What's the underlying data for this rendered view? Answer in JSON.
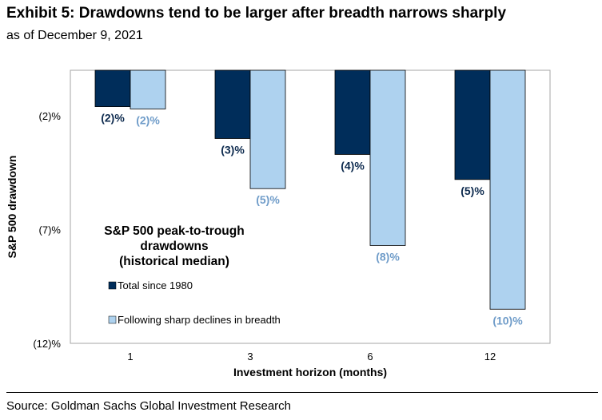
{
  "page": {
    "title": "Exhibit 5: Drawdowns tend to be larger after breadth narrows sharply",
    "subtitle": "as of December 9, 2021",
    "source": "Source: Goldman Sachs Global Investment Research"
  },
  "chart_data": {
    "type": "bar",
    "xlabel": "Investment horizon (months)",
    "ylabel": "S&P 500 drawdown",
    "categories": [
      "1",
      "3",
      "6",
      "12"
    ],
    "ylim": [
      -12,
      0
    ],
    "y_ticks": [
      {
        "value": -2,
        "label": "(2)%"
      },
      {
        "value": -7,
        "label": "(7)%"
      },
      {
        "value": -12,
        "label": "(12)%"
      }
    ],
    "grid": false,
    "legend": {
      "placement": "bottom-left",
      "title_lines": [
        "S&P 500 peak-to-trough",
        "drawdowns",
        "(historical median)"
      ]
    },
    "series": [
      {
        "name": "Total since 1980",
        "color": "#002d5a",
        "label_color": "#0d2a4e",
        "values": [
          -1.6,
          -3.0,
          -3.7,
          -4.8
        ],
        "labels": [
          "(2)%",
          "(3)%",
          "(4)%",
          "(5)%"
        ]
      },
      {
        "name": "Following sharp declines in breadth",
        "color": "#aed2ef",
        "label_color": "#6f9cc9",
        "values": [
          -1.7,
          -5.2,
          -7.7,
          -10.5
        ],
        "labels": [
          "(2)%",
          "(5)%",
          "(8)%",
          "(10)%"
        ]
      }
    ]
  }
}
